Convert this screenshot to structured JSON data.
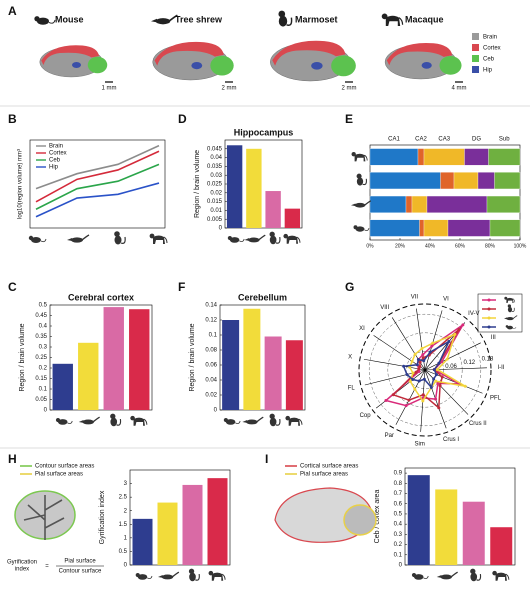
{
  "panel_labels": [
    "A",
    "B",
    "C",
    "D",
    "E",
    "F",
    "G",
    "H",
    "I"
  ],
  "panel_a": {
    "species": [
      "Mouse",
      "Tree shrew",
      "Marmoset",
      "Macaque"
    ],
    "scale_bars": [
      "1 mm",
      "2 mm",
      "2 mm",
      "4 mm"
    ],
    "legend": [
      "Brain",
      "Cortex",
      "Ceb",
      "Hip"
    ],
    "legend_colors": [
      "#9a9a9a",
      "#d9484f",
      "#5cc24f",
      "#3a4fa8"
    ]
  },
  "chart_data": [
    {
      "type": "line",
      "y_label": "log10(region volume) mm³",
      "categories": [
        null,
        null,
        null,
        null
      ],
      "ylim": [
        0.5,
        5.2
      ],
      "series": [
        {
          "name": "Brain",
          "color": "#8c8c8c",
          "values": [
            2.6,
            3.4,
            3.9,
            4.9
          ]
        },
        {
          "name": "Cortex",
          "color": "#d42a3a",
          "values": [
            1.9,
            3.1,
            3.6,
            4.6
          ]
        },
        {
          "name": "Ceb",
          "color": "#2aa54a",
          "values": [
            1.5,
            2.6,
            3.0,
            3.9
          ]
        },
        {
          "name": "Hip",
          "color": "#2a52c8",
          "values": [
            1.1,
            2.1,
            2.3,
            2.9
          ]
        }
      ]
    },
    {
      "type": "bar",
      "title": "Hippocampus",
      "y_label": "Region / brain volume",
      "categories": [
        null,
        null,
        null,
        null
      ],
      "values": [
        0.047,
        0.045,
        0.021,
        0.011
      ],
      "colors": [
        "#2e3d8f",
        "#f2dc3a",
        "#d96aa5",
        "#d92a4a"
      ],
      "ylim": [
        0,
        0.05
      ],
      "yticks": [
        0,
        0.005,
        0.01,
        0.015,
        0.02,
        0.025,
        0.03,
        0.035,
        0.04,
        0.045
      ]
    },
    {
      "type": "stacked-hbar",
      "categories": [
        null,
        null,
        null,
        null
      ],
      "xlim": [
        0,
        100
      ],
      "xticks": [
        {
          "value": 0,
          "label": "0%"
        },
        {
          "value": 20,
          "label": "20%"
        },
        {
          "value": 40,
          "label": "40%"
        },
        {
          "value": 60,
          "label": "60%"
        },
        {
          "value": 80,
          "label": "80%"
        },
        {
          "value": 100,
          "label": "100%"
        }
      ],
      "series": [
        {
          "name": "CA1",
          "color": "#1f78c8",
          "values": [
            32,
            47,
            24,
            33
          ]
        },
        {
          "name": "CA2",
          "color": "#e0652a",
          "values": [
            4,
            9,
            4,
            3
          ]
        },
        {
          "name": "CA3",
          "color": "#f0b828",
          "values": [
            27,
            16,
            10,
            16
          ]
        },
        {
          "name": "DG",
          "color": "#7a2f9a",
          "values": [
            16,
            11,
            40,
            28
          ]
        },
        {
          "name": "Sub",
          "color": "#6fb040",
          "values": [
            21,
            17,
            22,
            20
          ]
        }
      ]
    },
    {
      "type": "bar",
      "title": "Cerebral cortex",
      "y_label": "Region / brain volume",
      "categories": [
        null,
        null,
        null,
        null
      ],
      "values": [
        0.22,
        0.32,
        0.49,
        0.48
      ],
      "colors": [
        "#2e3d8f",
        "#f2dc3a",
        "#d96aa5",
        "#d92a4a"
      ],
      "ylim": [
        0,
        0.5
      ],
      "yticks": [
        0,
        0.05,
        0.1,
        0.15,
        0.2,
        0.25,
        0.3,
        0.35,
        0.4,
        0.45,
        0.5
      ]
    },
    {
      "type": "bar",
      "title": "Cerebellum",
      "y_label": "Region / brain volume",
      "categories": [
        null,
        null,
        null,
        null
      ],
      "values": [
        0.12,
        0.135,
        0.098,
        0.093
      ],
      "colors": [
        "#2e3d8f",
        "#f2dc3a",
        "#d96aa5",
        "#d92a4a"
      ],
      "ylim": [
        0,
        0.14
      ],
      "yticks": [
        0,
        0.02,
        0.04,
        0.06,
        0.08,
        0.1,
        0.12,
        0.14
      ]
    },
    {
      "type": "radar",
      "axes": [
        "VII",
        "VI",
        "IV-V",
        "III",
        "I-II",
        "PFL",
        "Crus II",
        "Crus I",
        "Sim",
        "Par",
        "Cop",
        "FL",
        "X",
        "XI",
        "VIII"
      ],
      "rlim": [
        0,
        0.2
      ],
      "rticks": [
        0.06,
        0.12,
        0.18
      ],
      "series": [
        {
          "color": "#d92a7a",
          "values": [
            0.05,
            0.08,
            0.19,
            0.06,
            0.03,
            0.12,
            0.06,
            0.1,
            0.09,
            0.13,
            0.16,
            0.02,
            0.02,
            0.03,
            0.04
          ]
        },
        {
          "color": "#c02a3a",
          "values": [
            0.04,
            0.05,
            0.17,
            0.05,
            0.03,
            0.06,
            0.07,
            0.13,
            0.08,
            0.11,
            0.13,
            0.03,
            0.02,
            0.02,
            0.03
          ]
        },
        {
          "color": "#f2d43a",
          "values": [
            0.07,
            0.09,
            0.15,
            0.08,
            0.04,
            0.14,
            0.05,
            0.06,
            0.1,
            0.07,
            0.06,
            0.04,
            0.05,
            0.05,
            0.06
          ]
        },
        {
          "color": "#2e3d8f",
          "values": [
            0.03,
            0.06,
            0.12,
            0.05,
            0.03,
            0.04,
            0.04,
            0.06,
            0.03,
            0.04,
            0.05,
            0.06,
            0.07,
            0.03,
            0.04
          ]
        }
      ]
    },
    {
      "type": "bar",
      "y_label": "Gyrification index",
      "legend": [
        "Contour surface areas",
        "Pial surface areas"
      ],
      "legend_colors": [
        "#7cc850",
        "#e8d048"
      ],
      "formula": {
        "lhs": [
          "Gyrification",
          "index"
        ],
        "eq": "=",
        "num": "Pial surface",
        "den": "Contour surface"
      },
      "categories": [
        null,
        null,
        null,
        null
      ],
      "values": [
        1.7,
        2.3,
        2.95,
        3.2
      ],
      "colors": [
        "#2e3d8f",
        "#f2dc3a",
        "#d96aa5",
        "#d92a4a"
      ],
      "ylim": [
        0,
        3.5
      ],
      "yticks": [
        0,
        0.5,
        1,
        1.5,
        2,
        2.5,
        3
      ]
    },
    {
      "type": "bar",
      "y_label": "Ceb / cortex area",
      "legend": [
        "Cortical surface areas",
        "Pial surface areas"
      ],
      "legend_colors": [
        "#d9484f",
        "#e8d048"
      ],
      "categories": [
        null,
        null,
        null,
        null
      ],
      "values": [
        0.88,
        0.74,
        0.62,
        0.37
      ],
      "colors": [
        "#2e3d8f",
        "#f2dc3a",
        "#d96aa5",
        "#d92a4a"
      ],
      "ylim": [
        0,
        0.95
      ],
      "yticks": [
        0,
        0.1,
        0.2,
        0.3,
        0.4,
        0.5,
        0.6,
        0.7,
        0.8,
        0.9
      ]
    }
  ]
}
